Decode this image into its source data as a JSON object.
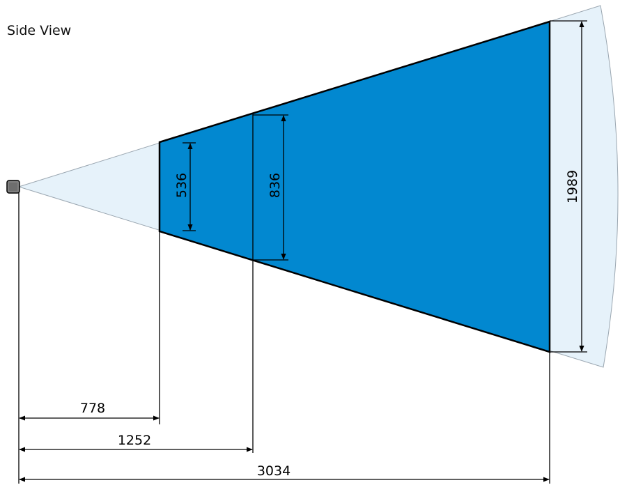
{
  "title": "Side View",
  "colors": {
    "coverage": "#0288d0",
    "field_of_view": "#e6f2fa",
    "field_of_view_outline": "#9aa6b0",
    "sensor_body": "#808080",
    "outline": "#000000"
  },
  "icons": {
    "sensor": "sensor-icon"
  },
  "dimensions": {
    "distance_near": "778",
    "distance_mid": "1252",
    "distance_far": "3034",
    "height_near": "536",
    "height_mid": "836",
    "height_far": "1989"
  }
}
